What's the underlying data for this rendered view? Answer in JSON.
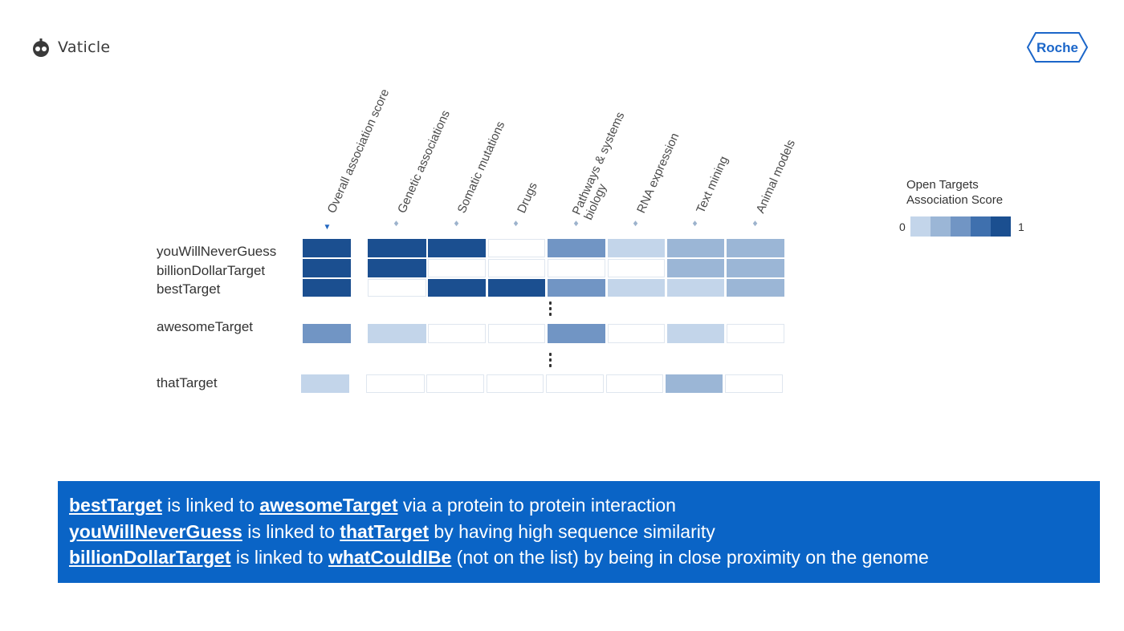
{
  "brand": {
    "left_logo_text": "Vaticle",
    "right_logo_text": "Roche"
  },
  "columns": [
    {
      "label": "Overall association score",
      "sort": "active-desc",
      "icon": "sort-desc-icon"
    },
    {
      "label": "Genetic associations",
      "sort": "none",
      "icon": "sort-icon"
    },
    {
      "label": "Somatic mutations",
      "sort": "none",
      "icon": "sort-icon"
    },
    {
      "label": "Drugs",
      "sort": "none",
      "icon": "sort-icon"
    },
    {
      "label": "Pathways & systems biology",
      "label_line1": "Pathways & systems",
      "label_line2": "biology",
      "sort": "none",
      "icon": "sort-icon"
    },
    {
      "label": "RNA expression",
      "sort": "none",
      "icon": "sort-icon"
    },
    {
      "label": "Text mining",
      "sort": "none",
      "icon": "sort-icon"
    },
    {
      "label": "Animal models",
      "sort": "none",
      "icon": "sort-icon"
    }
  ],
  "rows": [
    {
      "label": "youWillNeverGuess",
      "scores": [
        5,
        5,
        5,
        0,
        3,
        1,
        2,
        2
      ]
    },
    {
      "label": "billionDollarTarget",
      "scores": [
        5,
        5,
        0,
        0,
        0,
        0,
        2,
        2
      ]
    },
    {
      "label": "bestTarget",
      "scores": [
        5,
        0,
        5,
        5,
        3,
        1,
        1,
        2
      ]
    },
    {
      "label": "awesomeTarget",
      "scores": [
        3,
        1,
        0,
        0,
        3,
        0,
        1,
        0
      ]
    },
    {
      "label": "thatTarget",
      "scores": [
        1,
        0,
        0,
        0,
        0,
        0,
        2,
        0
      ]
    }
  ],
  "legend": {
    "title_line1": "Open Targets",
    "title_line2": "Association Score",
    "min_label": "0",
    "max_label": "1",
    "colors": [
      "#ffffff",
      "#c3d5ea",
      "#9bb6d6",
      "#7195c4",
      "#3f70ae",
      "#1b4f90"
    ]
  },
  "banner": {
    "background": "#0a64c6",
    "lines": [
      [
        {
          "text": "bestTarget",
          "kw": true
        },
        {
          "text": " is linked to ",
          "kw": false
        },
        {
          "text": "awesomeTarget",
          "kw": true
        },
        {
          "text": " via a protein to protein interaction",
          "kw": false
        }
      ],
      [
        {
          "text": "youWillNeverGuess",
          "kw": true
        },
        {
          "text": " is linked to ",
          "kw": false
        },
        {
          "text": "thatTarget",
          "kw": true
        },
        {
          "text": " by having high sequence similarity",
          "kw": false
        }
      ],
      [
        {
          "text": "billionDollarTarget",
          "kw": true
        },
        {
          "text": " is linked to ",
          "kw": false
        },
        {
          "text": "whatCouldIBe",
          "kw": true
        },
        {
          "text": " (not on the list) by being in close proximity on the genome",
          "kw": false
        }
      ]
    ]
  }
}
